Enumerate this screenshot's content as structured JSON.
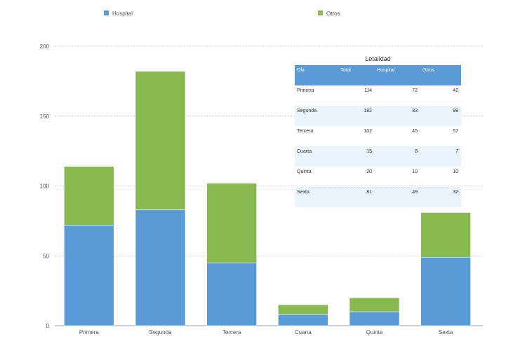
{
  "colors": {
    "hospital": "#5b9bd5",
    "otros": "#88b94f",
    "grid": "#c8c8c8"
  },
  "legend": [
    {
      "label": "Hospital",
      "color": "#5b9bd5"
    },
    {
      "label": "Otros",
      "color": "#88b94f"
    }
  ],
  "chart_data": {
    "type": "bar",
    "stacked": true,
    "categories": [
      "Primera",
      "Segunda",
      "Tercera",
      "Cuarta",
      "Quinta",
      "Sexta"
    ],
    "series": [
      {
        "name": "Hospital",
        "values": [
          72,
          83,
          45,
          8,
          10,
          49
        ]
      },
      {
        "name": "Otros",
        "values": [
          42,
          99,
          57,
          7,
          10,
          32
        ]
      }
    ],
    "ylim": [
      0,
      200
    ],
    "yticks": [
      "0",
      "50",
      "100",
      "150",
      "200"
    ],
    "grid": true,
    "legend_position": "top"
  },
  "table": {
    "title": "Letalidad",
    "headers": [
      "Ola",
      "Total",
      "Hospital",
      "Otros"
    ],
    "rows": [
      [
        "Primera",
        "114",
        "72",
        "42"
      ],
      [
        "Segunda",
        "182",
        "83",
        "99"
      ],
      [
        "Tercera",
        "102",
        "45",
        "57"
      ],
      [
        "Cuarta",
        "15",
        "8",
        "7"
      ],
      [
        "Quinta",
        "20",
        "10",
        "10"
      ],
      [
        "Sexta",
        "81",
        "49",
        "32"
      ]
    ]
  }
}
